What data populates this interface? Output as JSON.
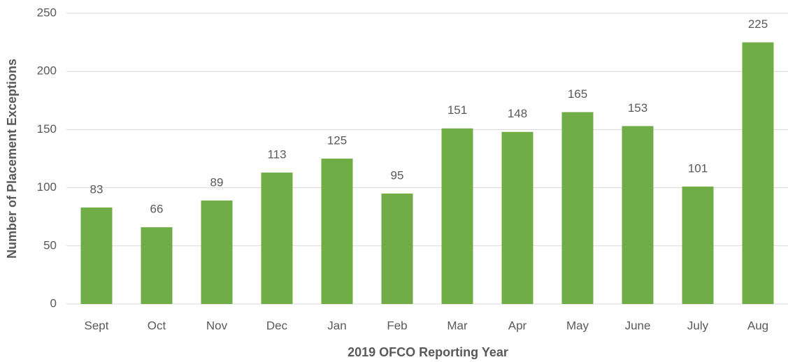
{
  "chart_data": {
    "type": "bar",
    "x_label": "2019 OFCO Reporting Year",
    "y_label": "Number of Placement Exceptions",
    "categories": [
      "Sept",
      "Oct",
      "Nov",
      "Dec",
      "Jan",
      "Feb",
      "Mar",
      "Apr",
      "May",
      "June",
      "July",
      "Aug"
    ],
    "values": [
      83,
      66,
      89,
      113,
      125,
      95,
      151,
      148,
      165,
      153,
      101,
      225
    ],
    "color": "#70ad47",
    "ylim": [
      0,
      250
    ],
    "yticks": [
      0,
      50,
      100,
      150,
      200,
      250
    ],
    "grid": true
  }
}
